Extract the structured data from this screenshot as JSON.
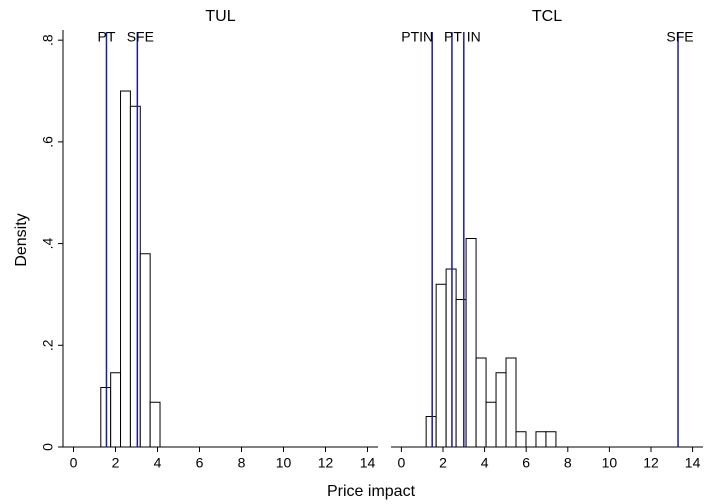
{
  "chart_data": [
    {
      "type": "histogram",
      "title": "TUL",
      "ylabel": "Density",
      "xlabel": "Price impact",
      "bins": [
        1.3,
        1.77,
        2.24,
        2.71,
        3.18,
        3.65,
        4.12
      ],
      "values": [
        0.117,
        0.146,
        0.7,
        0.67,
        0.38,
        0.088
      ],
      "xlim": [
        -0.5,
        14.5
      ],
      "xticks": [
        0,
        2,
        4,
        6,
        8,
        10,
        12,
        14
      ],
      "ylim": [
        0,
        0.82
      ],
      "yticks": [
        0,
        {
          "value": 0.2,
          "label": ".2"
        },
        {
          "value": 0.4,
          "label": ".4"
        },
        {
          "value": 0.6,
          "label": ".6"
        },
        {
          "value": 0.8,
          "label": ".8"
        }
      ],
      "reference_lines": [
        {
          "label": "PT",
          "value": 1.57
        },
        {
          "label": "SFE",
          "value": 3.04
        }
      ],
      "color": "#ffffff",
      "line_color": "#1a1aa6"
    },
    {
      "type": "histogram",
      "title": "TCL",
      "bins": [
        1.19,
        1.67,
        2.15,
        2.63,
        3.11,
        3.59,
        4.07,
        4.55,
        5.03,
        5.51,
        5.99,
        6.47,
        6.95,
        7.43
      ],
      "values": [
        0.06,
        0.32,
        0.35,
        0.29,
        0.41,
        0.175,
        0.088,
        0.146,
        0.175,
        0.03,
        0,
        0.03,
        0.03
      ],
      "xlim": [
        -0.5,
        14.5
      ],
      "xticks": [
        0,
        2,
        4,
        6,
        8,
        10,
        12,
        14
      ],
      "ylim": [
        0,
        0.82
      ],
      "reference_lines": [
        {
          "label": "PTIN",
          "value": 1.48
        },
        {
          "label": "PT",
          "value": 2.43
        },
        {
          "label": "IN",
          "value": 3.0
        },
        {
          "label": "SFE",
          "value": 13.3
        }
      ],
      "color": "#ffffff",
      "line_color": "#1a1aa6"
    }
  ]
}
